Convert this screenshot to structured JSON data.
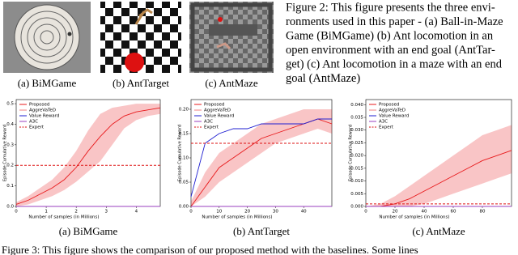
{
  "figure2": {
    "panel_captions": [
      "(a) BiMGame",
      "(b) AntTarget",
      "(c) AntMaze"
    ],
    "text_lines": [
      "Figure 2: This figure presents the three envi-",
      "ronments used in this paper - (a) Ball-in-Maze",
      "Game (BiMGame) (b) Ant locomotion in an",
      "open environment with an end goal (AntTar-",
      "get) (c) Ant locomotion in a maze with an end",
      "goal (AntMaze)"
    ]
  },
  "chart_data": [
    {
      "type": "line",
      "caption": "(a) BiMGame",
      "xlabel": "Number of samples (in Millions)",
      "ylabel": "Episode Cumulative Reward",
      "x": [
        0,
        0.4,
        0.8,
        1.2,
        1.6,
        2.0,
        2.4,
        2.8,
        3.2,
        3.6,
        4.0,
        4.4,
        4.8
      ],
      "xlim": [
        0,
        4.8
      ],
      "xticks": [
        0,
        1,
        2,
        3,
        4
      ],
      "ylim": [
        0,
        0.52
      ],
      "yticks": [
        {
          "value": 0,
          "label": "0.0"
        },
        {
          "value": 0.1,
          "label": "0.1"
        },
        {
          "value": 0.2,
          "label": "0.2"
        },
        {
          "value": 0.3,
          "label": "0.3"
        },
        {
          "value": 0.4,
          "label": "0.4"
        },
        {
          "value": 0.5,
          "label": "0.5"
        }
      ],
      "legend": "upper left",
      "series": [
        {
          "name": "Proposed",
          "color": "#e8191b",
          "values": [
            0.01,
            0.03,
            0.06,
            0.09,
            0.13,
            0.19,
            0.27,
            0.34,
            0.4,
            0.44,
            0.46,
            0.47,
            0.48
          ],
          "lower": [
            0.0,
            0.01,
            0.03,
            0.05,
            0.08,
            0.12,
            0.17,
            0.22,
            0.3,
            0.38,
            0.42,
            0.44,
            0.45
          ],
          "upper": [
            0.02,
            0.05,
            0.09,
            0.13,
            0.19,
            0.27,
            0.37,
            0.45,
            0.48,
            0.49,
            0.5,
            0.5,
            0.5
          ]
        },
        {
          "name": "AggreVaTeD",
          "color": "#f08080",
          "values": [
            0,
            0,
            0,
            0,
            0,
            0,
            0,
            0,
            0,
            0,
            0,
            0,
            0
          ]
        },
        {
          "name": "Value Reward",
          "color": "#1f1fd1",
          "values": [
            0,
            0,
            0,
            0,
            0,
            0,
            0,
            0,
            0,
            0,
            0,
            0,
            0
          ]
        },
        {
          "name": "A3C",
          "color": "#9a3fbf",
          "values": [
            0,
            0,
            0,
            0,
            0,
            0,
            0,
            0,
            0,
            0,
            0,
            0,
            0
          ]
        },
        {
          "name": "Expert",
          "color": "#d11",
          "dash": true,
          "values": [
            0.2,
            0.2,
            0.2,
            0.2,
            0.2,
            0.2,
            0.2,
            0.2,
            0.2,
            0.2,
            0.2,
            0.2,
            0.2
          ]
        }
      ]
    },
    {
      "type": "line",
      "caption": "(b) AntTarget",
      "xlabel": "Number of samples (in Millions)",
      "ylabel": "Episode Cumulative Reward",
      "x": [
        0,
        5,
        10,
        15,
        20,
        25,
        30,
        35,
        40,
        45,
        50
      ],
      "xlim": [
        0,
        50
      ],
      "xticks": [
        0,
        10,
        20,
        30,
        40
      ],
      "ylim": [
        0,
        0.22
      ],
      "yticks": [
        {
          "value": 0,
          "label": "0.00"
        },
        {
          "value": 0.05,
          "label": "0.05"
        },
        {
          "value": 0.1,
          "label": "0.10"
        },
        {
          "value": 0.15,
          "label": "0.15"
        },
        {
          "value": 0.2,
          "label": "0.20"
        }
      ],
      "legend": "upper left",
      "series": [
        {
          "name": "Proposed",
          "color": "#e8191b",
          "values": [
            0.0,
            0.04,
            0.08,
            0.1,
            0.12,
            0.14,
            0.15,
            0.16,
            0.17,
            0.18,
            0.17
          ],
          "lower": [
            0.0,
            0.02,
            0.05,
            0.07,
            0.09,
            0.11,
            0.13,
            0.14,
            0.15,
            0.16,
            0.15
          ],
          "upper": [
            0.01,
            0.07,
            0.11,
            0.13,
            0.15,
            0.17,
            0.18,
            0.19,
            0.2,
            0.2,
            0.2
          ]
        },
        {
          "name": "AggreVaTeD",
          "color": "#f08080",
          "values": [
            0,
            0,
            0,
            0,
            0,
            0,
            0,
            0,
            0,
            0,
            0
          ]
        },
        {
          "name": "Value Reward",
          "color": "#1f1fd1",
          "values": [
            0.02,
            0.13,
            0.15,
            0.16,
            0.16,
            0.17,
            0.17,
            0.17,
            0.17,
            0.18,
            0.18
          ]
        },
        {
          "name": "A3C",
          "color": "#9a3fbf",
          "values": [
            0,
            0,
            0,
            0,
            0,
            0,
            0,
            0,
            0,
            0,
            0
          ]
        },
        {
          "name": "Expert",
          "color": "#d11",
          "dash": true,
          "values": [
            0.13,
            0.13,
            0.13,
            0.13,
            0.13,
            0.13,
            0.13,
            0.13,
            0.13,
            0.13,
            0.13
          ]
        }
      ]
    },
    {
      "type": "line",
      "caption": "(c) AntMaze",
      "xlabel": "Number of samples (in Millions)",
      "ylabel": "Episode Cumulative Reward",
      "x": [
        0,
        10,
        20,
        30,
        40,
        50,
        60,
        70,
        80,
        90,
        100
      ],
      "xlim": [
        0,
        100
      ],
      "xticks": [
        0,
        20,
        40,
        60,
        80
      ],
      "ylim": [
        0,
        0.042
      ],
      "yticks": [
        {
          "value": 0,
          "label": "0.000"
        },
        {
          "value": 0.005,
          "label": "0.005"
        },
        {
          "value": 0.01,
          "label": "0.010"
        },
        {
          "value": 0.015,
          "label": "0.015"
        },
        {
          "value": 0.02,
          "label": "0.020"
        },
        {
          "value": 0.025,
          "label": "0.025"
        },
        {
          "value": 0.03,
          "label": "0.030"
        },
        {
          "value": 0.035,
          "label": "0.035"
        },
        {
          "value": 0.04,
          "label": "0.040"
        }
      ],
      "legend": "upper left",
      "series": [
        {
          "name": "Proposed",
          "color": "#e8191b",
          "values": [
            0,
            0,
            0.001,
            0.003,
            0.006,
            0.009,
            0.012,
            0.015,
            0.018,
            0.02,
            0.022
          ],
          "lower": [
            0,
            0,
            0,
            0.0,
            0.001,
            0.003,
            0.005,
            0.007,
            0.009,
            0.011,
            0.013
          ],
          "upper": [
            0,
            0.001,
            0.004,
            0.008,
            0.012,
            0.016,
            0.02,
            0.024,
            0.028,
            0.03,
            0.032
          ]
        },
        {
          "name": "AggreVaTeD",
          "color": "#f08080",
          "values": [
            0,
            0,
            0,
            0,
            0,
            0,
            0,
            0,
            0,
            0,
            0
          ]
        },
        {
          "name": "Value Reward",
          "color": "#1f1fd1",
          "values": [
            0,
            0,
            0,
            0,
            0,
            0,
            0,
            0,
            0,
            0,
            0
          ]
        },
        {
          "name": "A3C",
          "color": "#9a3fbf",
          "values": [
            0,
            0,
            0,
            0,
            0,
            0,
            0,
            0,
            0,
            0,
            0
          ]
        },
        {
          "name": "Expert",
          "color": "#d11",
          "dash": true,
          "values": [
            0.001,
            0.001,
            0.001,
            0.001,
            0.001,
            0.001,
            0.001,
            0.001,
            0.001,
            0.001,
            0.001
          ]
        }
      ]
    }
  ],
  "figure3_caption": "Figure 3: This figure shows the comparison of our proposed method with the baselines. Some lines"
}
